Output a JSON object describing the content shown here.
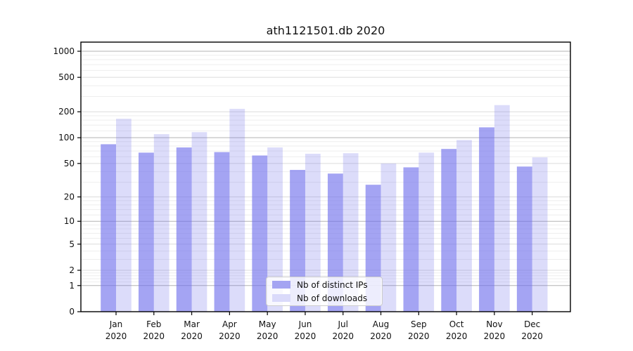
{
  "title": "ath1121501.db 2020",
  "chart_data": {
    "type": "bar",
    "title": "ath1121501.db 2020",
    "categories": [
      "Jan",
      "Feb",
      "Mar",
      "Apr",
      "May",
      "Jun",
      "Jul",
      "Aug",
      "Sep",
      "Oct",
      "Nov",
      "Dec"
    ],
    "year_label": "2020",
    "series": [
      {
        "name": "Nb of distinct IPs",
        "values": [
          84,
          67,
          77,
          68,
          62,
          42,
          38,
          28,
          45,
          74,
          132,
          46
        ]
      },
      {
        "name": "Nb of downloads",
        "values": [
          166,
          110,
          116,
          216,
          77,
          65,
          66,
          50,
          67,
          94,
          239,
          59
        ]
      }
    ],
    "y_scale": "log1p",
    "y_ticks": [
      0,
      1,
      2,
      5,
      10,
      20,
      50,
      100,
      200,
      500,
      1000
    ],
    "ylim": [
      0,
      1270
    ],
    "grid": true,
    "legend_position": "bottom-center"
  },
  "colors": {
    "bar_distinct_ips": "rgba(108,108,236,0.62)",
    "bar_downloads": "rgba(108,108,236,0.24)",
    "swatch_distinct_ips": "#a4a4f2",
    "swatch_downloads": "#dadafa",
    "grid_decade": "#b3b3b3",
    "grid_major": "#dcdcdc",
    "grid_minor": "#eeeeee",
    "axis": "#000000",
    "text": "#111111"
  }
}
